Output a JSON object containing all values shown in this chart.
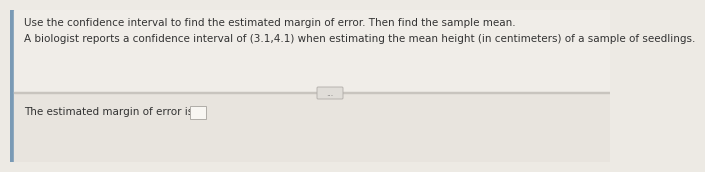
{
  "title_line": "Use the confidence interval to find the estimated margin of error. Then find the sample mean.",
  "body_line": "A biologist reports a confidence interval of (3.1,4.1) when estimating the mean height (in centimeters) of a sample of seedlings.",
  "answer_line": "The estimated margin of error is",
  "dots_text": "...",
  "bg_color": "#edeae4",
  "left_bar_color": "#7a9ab5",
  "top_panel_color": "#f0ede8",
  "bottom_panel_color": "#e8e4de",
  "divider_color": "#c8c4be",
  "dots_bg": "#e0ddd8",
  "dots_border": "#b0aca8",
  "box_color": "#f8f6f2",
  "box_edge_color": "#b0aca8",
  "text_color": "#333333",
  "title_fontsize": 7.5,
  "body_fontsize": 7.5,
  "answer_fontsize": 7.5
}
